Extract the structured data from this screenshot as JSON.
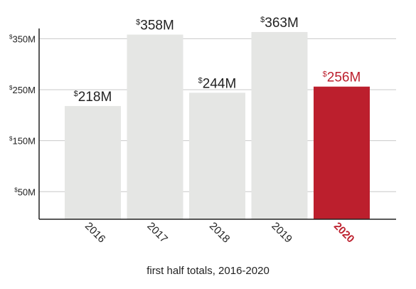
{
  "chart_data": {
    "type": "bar",
    "title": "",
    "subtitle": "",
    "xlabel": "first half totals, 2016-2020",
    "ylabel": "",
    "categories": [
      "2016",
      "2017",
      "2018",
      "2019",
      "2020"
    ],
    "values": [
      218,
      358,
      244,
      363,
      256
    ],
    "data_labels": [
      "218M",
      "358M",
      "244M",
      "363M",
      "256M"
    ],
    "label_prefix": "$",
    "y_ticks": [
      {
        "value": 50,
        "label": "50M"
      },
      {
        "value": 150,
        "label": "150M"
      },
      {
        "value": 250,
        "label": "250M"
      },
      {
        "value": 350,
        "label": "350M"
      }
    ],
    "ylim": [
      -4,
      370
    ],
    "grid": "horizontal",
    "highlight_index": 4,
    "colors": {
      "bar": "#e5e6e4",
      "highlight": "#bc1f2d",
      "text": "#222222",
      "grid": "#c8c8c8",
      "axis": "#222222"
    }
  }
}
